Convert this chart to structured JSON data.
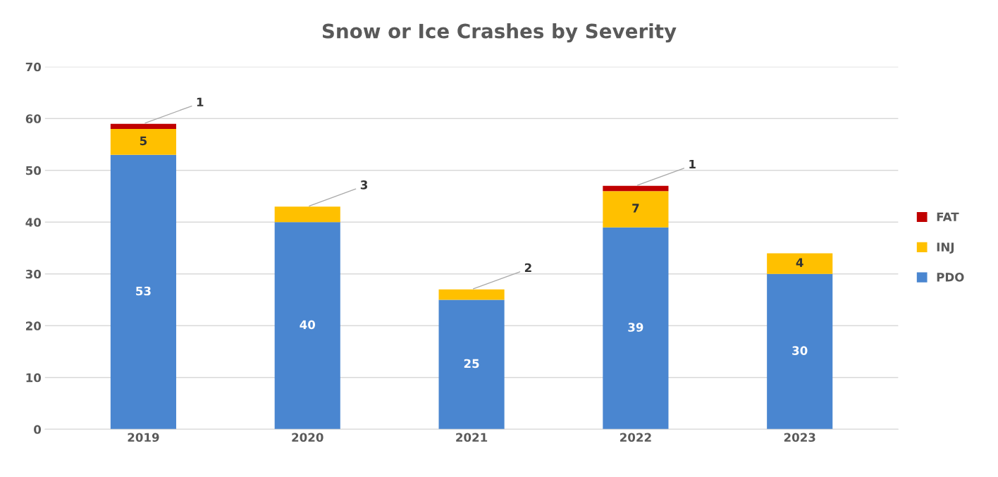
{
  "chart_data": {
    "type": "bar",
    "title": "Snow or Ice Crashes by Severity",
    "categories": [
      "2019",
      "2020",
      "2021",
      "2022",
      "2023"
    ],
    "series": [
      {
        "name": "PDO",
        "color": "#4a86d0",
        "values": [
          53,
          40,
          25,
          39,
          30
        ]
      },
      {
        "name": "INJ",
        "color": "#ffc000",
        "values": [
          5,
          3,
          2,
          7,
          4
        ]
      },
      {
        "name": "FAT",
        "color": "#c00000",
        "values": [
          1,
          null,
          null,
          1,
          null
        ]
      }
    ],
    "stacked": true,
    "ylim": [
      0,
      70
    ],
    "yticks": [
      0,
      10,
      20,
      30,
      40,
      50,
      60,
      70
    ],
    "grid": "y",
    "legend": "right",
    "data_labels": true
  }
}
